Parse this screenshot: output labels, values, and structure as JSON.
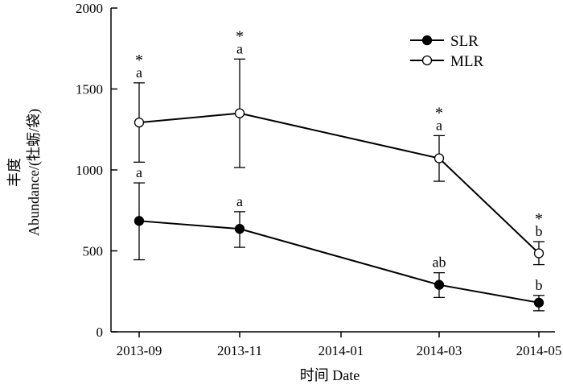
{
  "chart_data": {
    "type": "line",
    "xlabel": "时间 Date",
    "ylabel_cn": "丰度",
    "ylabel_en": "Abundance/(牡蛎/袋)",
    "x_tick_labels": [
      "2013-09",
      "2013-11",
      "2014-01",
      "2014-03",
      "2014-05"
    ],
    "x": [
      "2013-09",
      "2013-11",
      "2014-03",
      "2014-05"
    ],
    "ylim": [
      0,
      2000
    ],
    "y_ticks": [
      0,
      500,
      1000,
      1500,
      2000
    ],
    "legend_position": "top-right",
    "series": [
      {
        "name": "SLR",
        "marker": "filled-circle",
        "values": [
          685,
          636,
          290,
          180
        ],
        "err_low": [
          445,
          522,
          212,
          130
        ],
        "err_high": [
          920,
          742,
          365,
          225
        ],
        "labels": [
          "a",
          "a",
          "ab",
          "b"
        ]
      },
      {
        "name": "MLR",
        "marker": "open-circle",
        "values": [
          1293,
          1350,
          1072,
          485
        ],
        "err_low": [
          1048,
          1015,
          930,
          415
        ],
        "err_high": [
          1538,
          1685,
          1212,
          557
        ],
        "labels": [
          "a",
          "a",
          "a",
          "b"
        ]
      }
    ],
    "significance_marks": [
      "*",
      "*",
      "*",
      "*"
    ]
  }
}
